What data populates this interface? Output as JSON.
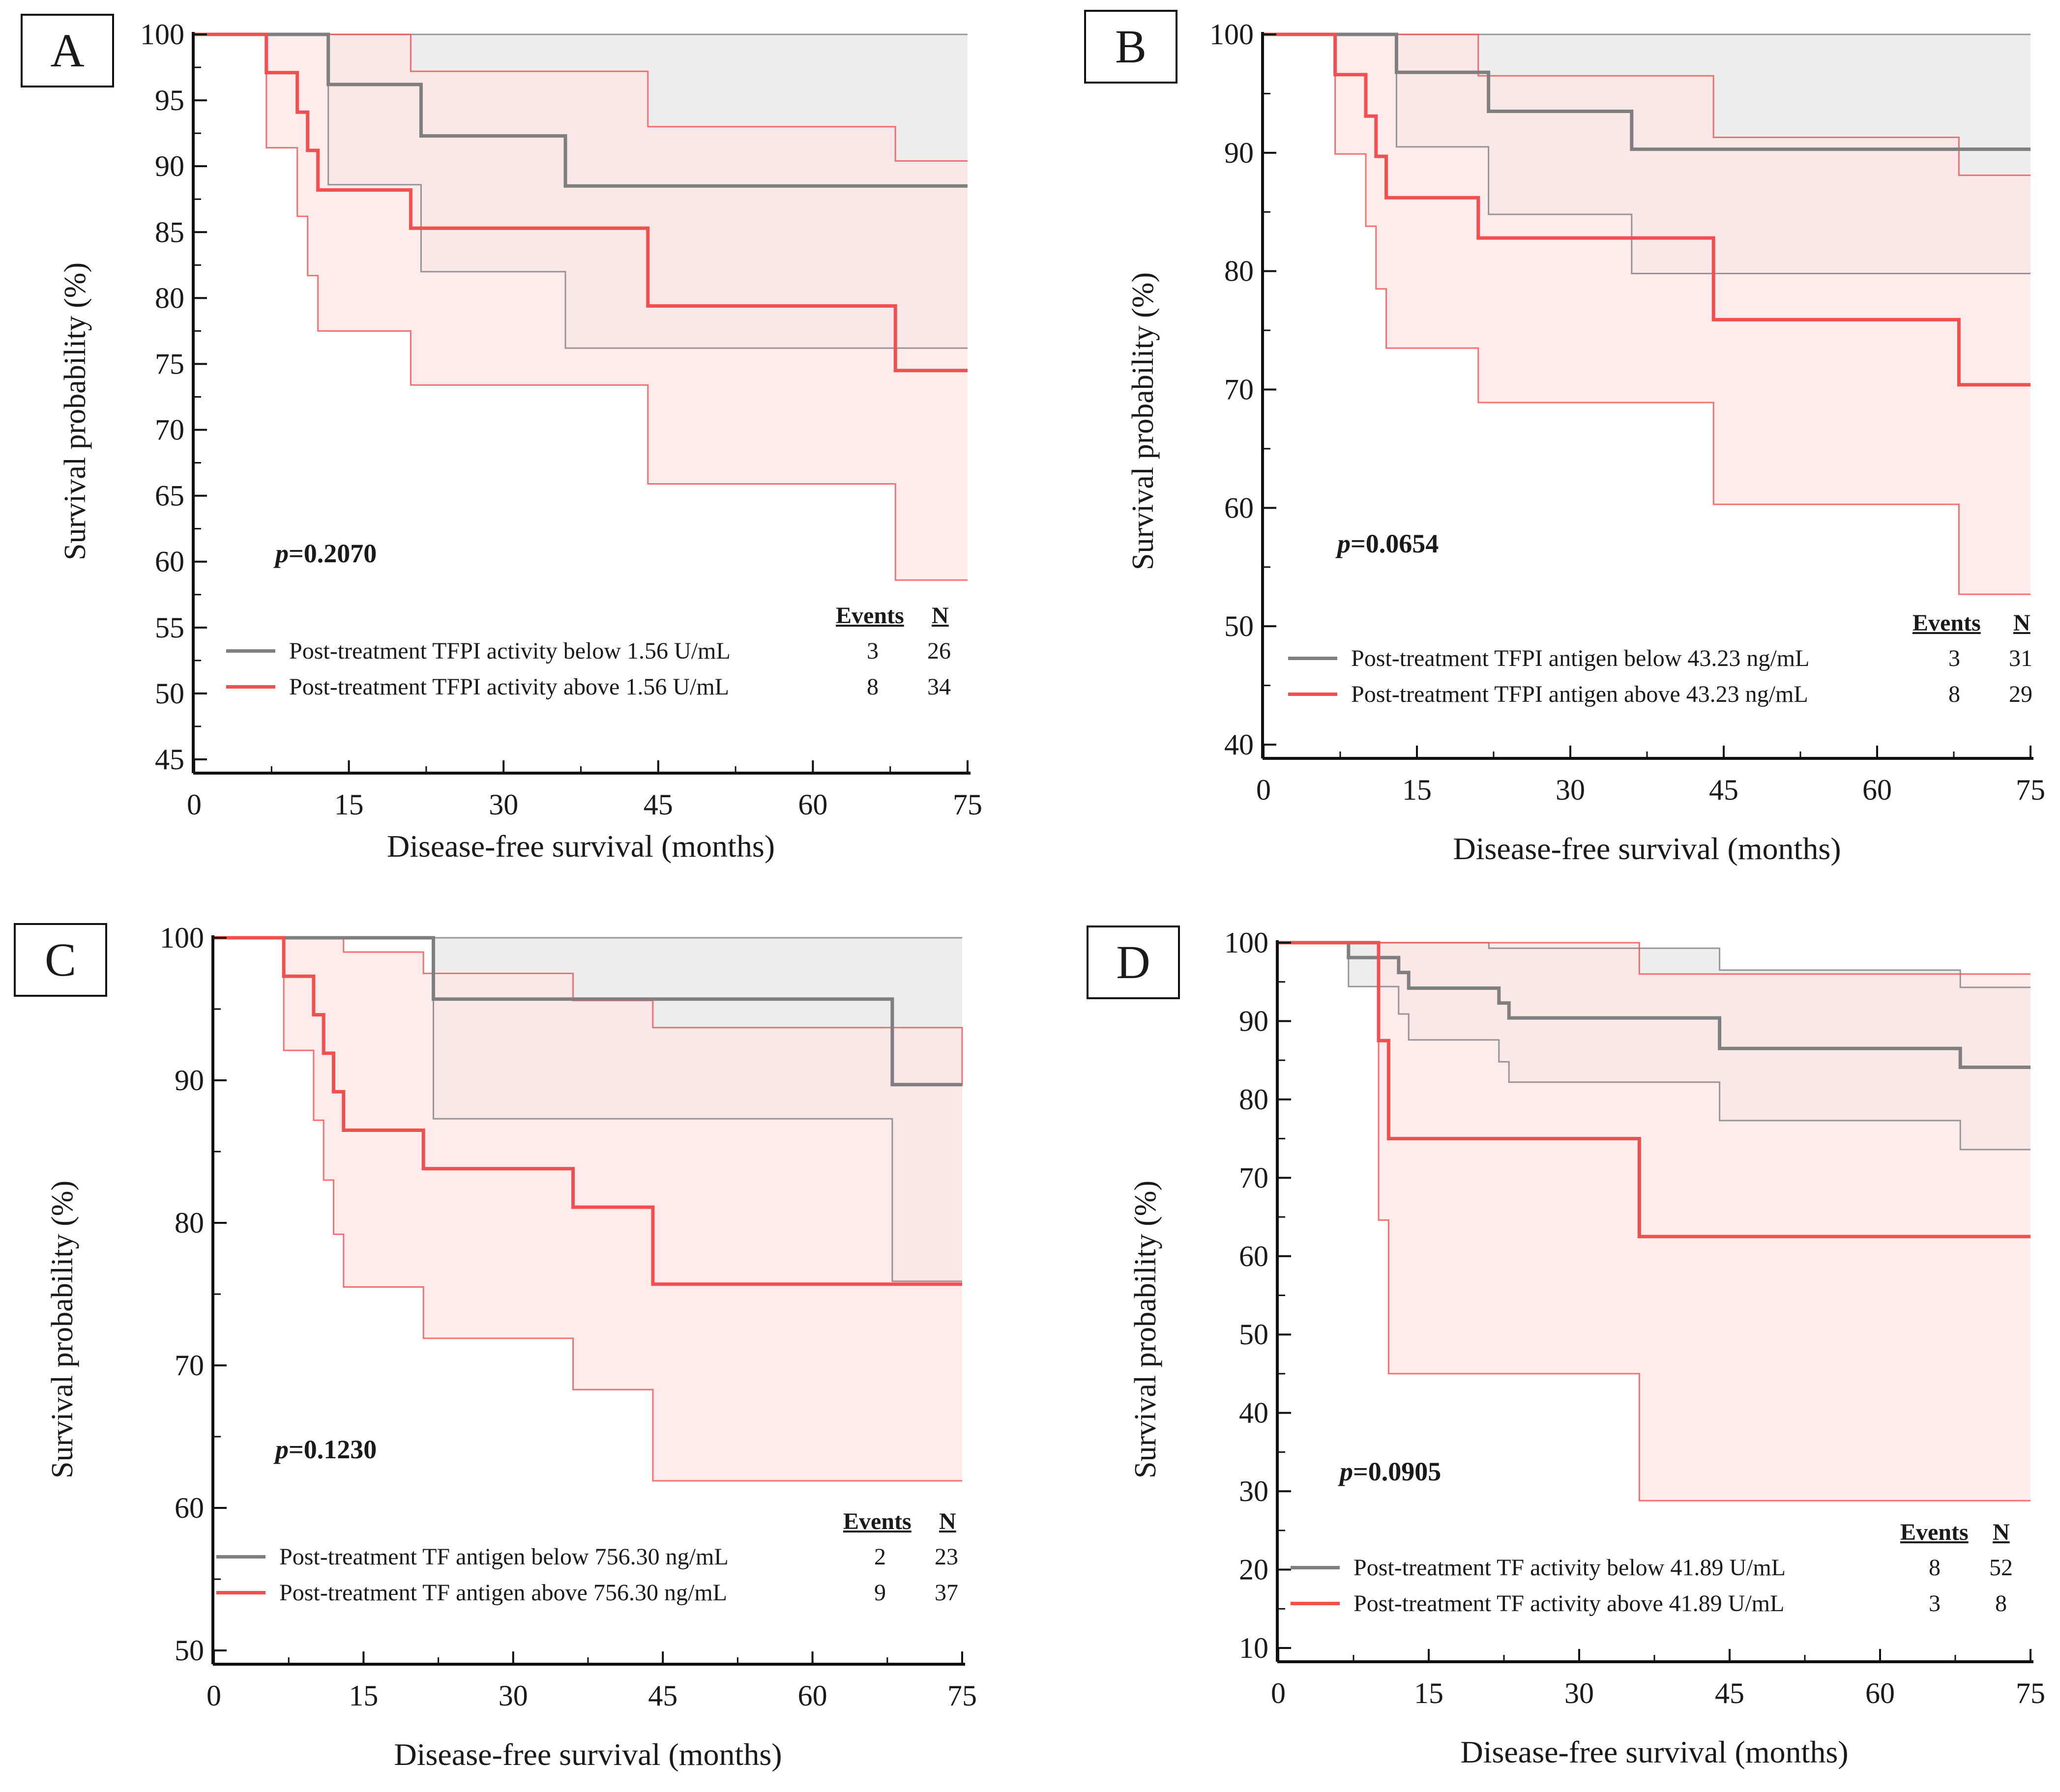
{
  "colors": {
    "below": "#7f7f7f",
    "above": "#f25050",
    "below_band": "#ebebec",
    "above_band": "#fde4e4"
  },
  "legend_headers": {
    "events": "Events",
    "n": "N"
  },
  "chart_data": [
    {
      "panel": "A",
      "type": "line",
      "step": true,
      "ylabel": "Survival probability (%)",
      "xlabel": "Disease-free survival (months)",
      "ylim": [
        45,
        100
      ],
      "yticks": [
        45,
        50,
        55,
        60,
        65,
        70,
        75,
        80,
        85,
        90,
        95,
        100
      ],
      "xlim": [
        0,
        75
      ],
      "xticks": [
        0,
        15,
        30,
        45,
        60,
        75
      ],
      "p_label": "p",
      "p_value": "=0.2070",
      "legend_position": "bottom-right",
      "series": [
        {
          "name": "Post-treatment TFPI activity below 1.56 U/mL",
          "group": "below",
          "events": "3",
          "n": "26",
          "x": [
            0,
            13,
            22,
            36,
            75
          ],
          "y": [
            100,
            96.2,
            92.3,
            88.5,
            88.5
          ],
          "ci_upper": {
            "x": [
              0,
              75
            ],
            "y": [
              100,
              100
            ]
          },
          "ci_lower": {
            "x": [
              0,
              13,
              22,
              36,
              75
            ],
            "y": [
              100,
              88.6,
              82,
              76.2,
              76.2
            ]
          }
        },
        {
          "name": "Post-treatment TFPI activity above 1.56 U/mL",
          "group": "above",
          "events": "8",
          "n": "34",
          "x": [
            0,
            7,
            10,
            11,
            12,
            21,
            44,
            68,
            75
          ],
          "y": [
            100,
            97.1,
            94.1,
            91.2,
            88.2,
            85.3,
            79.4,
            74.5,
            74.5
          ],
          "ci_upper": {
            "x": [
              0,
              21,
              44,
              68,
              75
            ],
            "y": [
              100,
              97.2,
              93,
              90.4,
              90.4
            ]
          },
          "ci_lower": {
            "x": [
              0,
              7,
              10,
              11,
              12,
              21,
              44,
              68,
              75
            ],
            "y": [
              100,
              91.4,
              86.2,
              81.7,
              77.5,
              73.4,
              65.9,
              58.6,
              58.6
            ]
          }
        }
      ]
    },
    {
      "panel": "B",
      "type": "line",
      "step": true,
      "ylabel": "Survival probability (%)",
      "xlabel": "Disease-free survival (months)",
      "ylim": [
        40,
        100
      ],
      "yticks": [
        40,
        50,
        60,
        70,
        80,
        90,
        100
      ],
      "xlim": [
        0,
        75
      ],
      "xticks": [
        0,
        15,
        30,
        45,
        60,
        75
      ],
      "p_label": "p",
      "p_value": "=0.0654",
      "legend_position": "bottom-right",
      "series": [
        {
          "name": "Post-treatment TFPI antigen below 43.23 ng/mL",
          "group": "below",
          "events": "3",
          "n": "31",
          "x": [
            0,
            13,
            22,
            36,
            75
          ],
          "y": [
            100,
            96.8,
            93.5,
            90.3,
            90.3
          ],
          "ci_upper": {
            "x": [
              0,
              75
            ],
            "y": [
              100,
              100
            ]
          },
          "ci_lower": {
            "x": [
              0,
              13,
              22,
              36,
              75
            ],
            "y": [
              100,
              90.5,
              84.8,
              79.8,
              79.8
            ]
          }
        },
        {
          "name": "Post-treatment TFPI antigen above 43.23 ng/mL",
          "group": "above",
          "events": "8",
          "n": "29",
          "x": [
            0,
            7,
            10,
            11,
            12,
            21,
            44,
            68,
            75
          ],
          "y": [
            100,
            96.6,
            93.1,
            89.7,
            86.2,
            82.8,
            75.9,
            70.4,
            70.4
          ],
          "ci_upper": {
            "x": [
              0,
              21,
              44,
              68,
              75
            ],
            "y": [
              100,
              96.5,
              91.3,
              88.1,
              88.1
            ]
          },
          "ci_lower": {
            "x": [
              0,
              7,
              10,
              11,
              12,
              21,
              44,
              68,
              75
            ],
            "y": [
              100,
              89.9,
              83.8,
              78.5,
              73.5,
              68.9,
              60.3,
              52.7,
              52.7
            ]
          }
        }
      ]
    },
    {
      "panel": "C",
      "type": "line",
      "step": true,
      "ylabel": "Survival probability (%)",
      "xlabel": "Disease-free survival (months)",
      "ylim": [
        50,
        100
      ],
      "yticks": [
        50,
        60,
        70,
        80,
        90,
        100
      ],
      "xlim": [
        0,
        75
      ],
      "xticks": [
        0,
        15,
        30,
        45,
        60,
        75
      ],
      "p_label": "p",
      "p_value": "=0.1230",
      "legend_position": "bottom-right",
      "series": [
        {
          "name": "Post-treatment TF antigen below 756.30 ng/mL",
          "group": "below",
          "events": "2",
          "n": "23",
          "x": [
            0,
            22,
            68,
            75
          ],
          "y": [
            100,
            95.7,
            89.7,
            89.7
          ],
          "ci_upper": {
            "x": [
              0,
              75
            ],
            "y": [
              100,
              100
            ]
          },
          "ci_lower": {
            "x": [
              0,
              22,
              68,
              75
            ],
            "y": [
              100,
              87.3,
              75.9,
              75.9
            ]
          }
        },
        {
          "name": "Post-treatment TF antigen above 756.30 ng/mL",
          "group": "above",
          "events": "9",
          "n": "37",
          "x": [
            0,
            7,
            10,
            11,
            12,
            13,
            21,
            36,
            44,
            75
          ],
          "y": [
            100,
            97.3,
            94.6,
            91.9,
            89.2,
            86.5,
            83.8,
            81.1,
            75.7,
            75.7
          ],
          "ci_upper": {
            "x": [
              0,
              13,
              21,
              36,
              44,
              75
            ],
            "y": [
              100,
              99,
              97.5,
              95.6,
              93.7,
              89.6
            ]
          },
          "ci_lower": {
            "x": [
              0,
              7,
              10,
              11,
              12,
              13,
              21,
              36,
              44,
              75
            ],
            "y": [
              100,
              92.1,
              87.2,
              83,
              79.2,
              75.5,
              71.9,
              68.3,
              61.9,
              61.9
            ]
          }
        }
      ]
    },
    {
      "panel": "D",
      "type": "line",
      "step": true,
      "ylabel": "Survival probability (%)",
      "xlabel": "Disease-free survival (months)",
      "ylim": [
        10,
        100
      ],
      "yticks": [
        10,
        20,
        30,
        40,
        50,
        60,
        70,
        80,
        90,
        100
      ],
      "xlim": [
        0,
        75
      ],
      "xticks": [
        0,
        15,
        30,
        45,
        60,
        75
      ],
      "p_label": "p",
      "p_value": "=0.0905",
      "legend_position": "bottom-right",
      "series": [
        {
          "name": "Post-treatment TF activity below 41.89 U/mL",
          "group": "below",
          "events": "8",
          "n": "52",
          "x": [
            0,
            7,
            12,
            13,
            22,
            23,
            44,
            68,
            75
          ],
          "y": [
            100,
            98.1,
            96.2,
            94.2,
            92.3,
            90.4,
            86.5,
            84.1,
            84.1
          ],
          "ci_upper": {
            "x": [
              0,
              21,
              44,
              68,
              75
            ],
            "y": [
              100,
              99.3,
              96.5,
              94.3,
              94.3
            ]
          },
          "ci_lower": {
            "x": [
              0,
              7,
              12,
              13,
              22,
              23,
              44,
              68,
              75
            ],
            "y": [
              100,
              94.4,
              90.9,
              87.6,
              84.8,
              82.2,
              77.3,
              73.6,
              73.6
            ]
          }
        },
        {
          "name": "Post-treatment TF activity above 41.89 U/mL",
          "group": "above",
          "events": "3",
          "n": "8",
          "x": [
            0,
            10,
            11,
            36,
            75
          ],
          "y": [
            100,
            87.5,
            75,
            62.5,
            62.5
          ],
          "ci_upper": {
            "x": [
              0,
              36,
              75
            ],
            "y": [
              100,
              96,
              96
            ]
          },
          "ci_lower": {
            "x": [
              0,
              10,
              11,
              36,
              75
            ],
            "y": [
              100,
              64.6,
              45,
              28.8,
              28.8
            ]
          }
        }
      ]
    }
  ]
}
